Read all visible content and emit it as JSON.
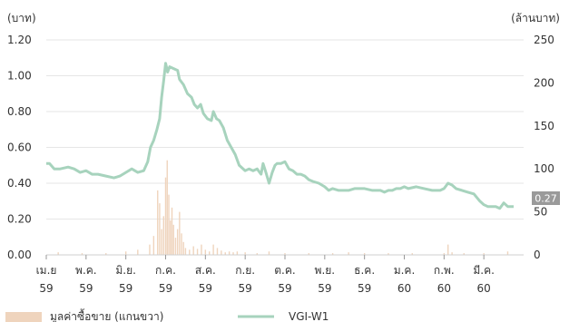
{
  "chart_data": {
    "type": "line",
    "left_unit": "(บาท)",
    "right_unit": "(ล้านบาท)",
    "y_left": {
      "min": 0,
      "max": 1.2,
      "ticks": [
        "0.00",
        "0.20",
        "0.40",
        "0.60",
        "0.80",
        "1.00",
        "1.20"
      ]
    },
    "y_right": {
      "min": 0,
      "max": 250,
      "ticks": [
        "0",
        "50",
        "100",
        "150",
        "200",
        "250"
      ]
    },
    "x_ticks": [
      {
        "month": "เม.ย",
        "year": "59"
      },
      {
        "month": "พ.ค.",
        "year": "59"
      },
      {
        "month": "มิ.ย.",
        "year": "59"
      },
      {
        "month": "ก.ค.",
        "year": "59"
      },
      {
        "month": "ส.ค.",
        "year": "59"
      },
      {
        "month": "ก.ย.",
        "year": "59"
      },
      {
        "month": "ต.ค.",
        "year": "59"
      },
      {
        "month": "พ.ย.",
        "year": "59"
      },
      {
        "month": "ธ.ค.",
        "year": "59"
      },
      {
        "month": "ม.ค.",
        "year": "60"
      },
      {
        "month": "ก.พ.",
        "year": "60"
      },
      {
        "month": "มี.ค.",
        "year": "60"
      }
    ],
    "last_value_label": "0.27",
    "legend": {
      "volume_label": "มูลค่าซื้อขาย (แกนขวา)",
      "price_label": "VGI-W1"
    },
    "series": [
      {
        "name": "VGI-W1",
        "axis": "left",
        "color": "#a7d3bd",
        "values": [
          [
            0.0,
            0.51
          ],
          [
            0.08,
            0.51
          ],
          [
            0.2,
            0.48
          ],
          [
            0.35,
            0.48
          ],
          [
            0.55,
            0.49
          ],
          [
            0.7,
            0.48
          ],
          [
            0.85,
            0.46
          ],
          [
            1.0,
            0.47
          ],
          [
            1.15,
            0.45
          ],
          [
            1.3,
            0.45
          ],
          [
            1.5,
            0.44
          ],
          [
            1.7,
            0.43
          ],
          [
            1.85,
            0.44
          ],
          [
            2.0,
            0.46
          ],
          [
            2.15,
            0.48
          ],
          [
            2.3,
            0.46
          ],
          [
            2.45,
            0.47
          ],
          [
            2.55,
            0.52
          ],
          [
            2.62,
            0.6
          ],
          [
            2.7,
            0.64
          ],
          [
            2.78,
            0.7
          ],
          [
            2.85,
            0.76
          ],
          [
            2.9,
            0.88
          ],
          [
            2.95,
            0.97
          ],
          [
            3.0,
            1.07
          ],
          [
            3.05,
            1.02
          ],
          [
            3.1,
            1.05
          ],
          [
            3.2,
            1.04
          ],
          [
            3.3,
            1.03
          ],
          [
            3.35,
            0.98
          ],
          [
            3.45,
            0.95
          ],
          [
            3.55,
            0.9
          ],
          [
            3.65,
            0.88
          ],
          [
            3.72,
            0.84
          ],
          [
            3.8,
            0.82
          ],
          [
            3.88,
            0.84
          ],
          [
            3.95,
            0.79
          ],
          [
            4.05,
            0.76
          ],
          [
            4.15,
            0.75
          ],
          [
            4.2,
            0.8
          ],
          [
            4.28,
            0.76
          ],
          [
            4.35,
            0.75
          ],
          [
            4.45,
            0.71
          ],
          [
            4.55,
            0.64
          ],
          [
            4.65,
            0.6
          ],
          [
            4.75,
            0.56
          ],
          [
            4.85,
            0.5
          ],
          [
            5.0,
            0.47
          ],
          [
            5.1,
            0.48
          ],
          [
            5.2,
            0.47
          ],
          [
            5.3,
            0.48
          ],
          [
            5.4,
            0.45
          ],
          [
            5.45,
            0.51
          ],
          [
            5.52,
            0.46
          ],
          [
            5.6,
            0.4
          ],
          [
            5.68,
            0.46
          ],
          [
            5.75,
            0.5
          ],
          [
            5.8,
            0.51
          ],
          [
            5.9,
            0.51
          ],
          [
            6.0,
            0.52
          ],
          [
            6.1,
            0.48
          ],
          [
            6.2,
            0.47
          ],
          [
            6.3,
            0.45
          ],
          [
            6.4,
            0.45
          ],
          [
            6.5,
            0.44
          ],
          [
            6.6,
            0.42
          ],
          [
            6.7,
            0.41
          ],
          [
            6.85,
            0.4
          ],
          [
            7.0,
            0.38
          ],
          [
            7.1,
            0.36
          ],
          [
            7.2,
            0.37
          ],
          [
            7.35,
            0.36
          ],
          [
            7.5,
            0.36
          ],
          [
            7.6,
            0.36
          ],
          [
            7.75,
            0.37
          ],
          [
            8.0,
            0.37
          ],
          [
            8.2,
            0.36
          ],
          [
            8.4,
            0.36
          ],
          [
            8.5,
            0.35
          ],
          [
            8.6,
            0.36
          ],
          [
            8.7,
            0.36
          ],
          [
            8.8,
            0.37
          ],
          [
            8.9,
            0.37
          ],
          [
            9.0,
            0.38
          ],
          [
            9.1,
            0.37
          ],
          [
            9.3,
            0.38
          ],
          [
            9.5,
            0.37
          ],
          [
            9.7,
            0.36
          ],
          [
            9.9,
            0.36
          ],
          [
            10.0,
            0.37
          ],
          [
            10.1,
            0.4
          ],
          [
            10.2,
            0.39
          ],
          [
            10.3,
            0.37
          ],
          [
            10.45,
            0.36
          ],
          [
            10.6,
            0.35
          ],
          [
            10.75,
            0.34
          ],
          [
            10.9,
            0.3
          ],
          [
            11.0,
            0.28
          ],
          [
            11.1,
            0.27
          ],
          [
            11.2,
            0.27
          ],
          [
            11.3,
            0.27
          ],
          [
            11.4,
            0.26
          ],
          [
            11.5,
            0.29
          ],
          [
            11.6,
            0.27
          ],
          [
            11.75,
            0.27
          ]
        ]
      },
      {
        "name": "มูลค่าซื้อขาย",
        "axis": "right",
        "color": "#efd4bd",
        "values": [
          [
            0.3,
            3
          ],
          [
            0.9,
            2
          ],
          [
            1.5,
            2
          ],
          [
            2.0,
            4
          ],
          [
            2.3,
            6
          ],
          [
            2.6,
            12
          ],
          [
            2.7,
            22
          ],
          [
            2.8,
            75
          ],
          [
            2.85,
            60
          ],
          [
            2.9,
            30
          ],
          [
            2.95,
            45
          ],
          [
            3.0,
            90
          ],
          [
            3.04,
            110
          ],
          [
            3.08,
            70
          ],
          [
            3.12,
            40
          ],
          [
            3.16,
            55
          ],
          [
            3.2,
            35
          ],
          [
            3.25,
            20
          ],
          [
            3.3,
            30
          ],
          [
            3.35,
            50
          ],
          [
            3.4,
            25
          ],
          [
            3.45,
            15
          ],
          [
            3.5,
            8
          ],
          [
            3.6,
            6
          ],
          [
            3.7,
            10
          ],
          [
            3.8,
            7
          ],
          [
            3.9,
            12
          ],
          [
            4.0,
            6
          ],
          [
            4.1,
            4
          ],
          [
            4.2,
            12
          ],
          [
            4.3,
            8
          ],
          [
            4.4,
            5
          ],
          [
            4.5,
            3
          ],
          [
            4.6,
            4
          ],
          [
            4.7,
            3
          ],
          [
            4.8,
            4
          ],
          [
            5.0,
            3
          ],
          [
            5.3,
            2
          ],
          [
            5.6,
            4
          ],
          [
            6.0,
            2
          ],
          [
            6.6,
            2
          ],
          [
            7.2,
            2
          ],
          [
            7.6,
            3
          ],
          [
            8.0,
            2
          ],
          [
            8.6,
            2
          ],
          [
            9.2,
            2
          ],
          [
            10.0,
            2
          ],
          [
            10.1,
            12
          ],
          [
            10.2,
            3
          ],
          [
            10.5,
            2
          ],
          [
            11.0,
            2
          ],
          [
            11.6,
            4
          ]
        ]
      }
    ]
  }
}
